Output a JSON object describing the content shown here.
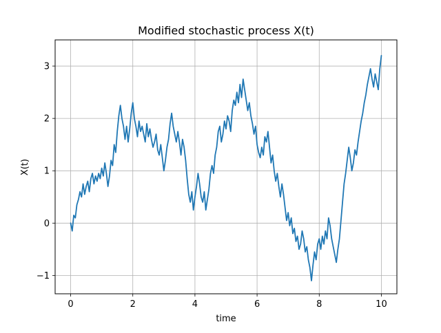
{
  "chart_data": {
    "type": "line",
    "title": "Modified stochastic process X(t)",
    "xlabel": "time",
    "ylabel": "X(t)",
    "xlim": [
      -0.5,
      10.5
    ],
    "ylim": [
      -1.35,
      3.5
    ],
    "grid": true,
    "legend": "none",
    "x_ticks": [
      0,
      2,
      4,
      6,
      8,
      10
    ],
    "y_ticks": [
      -1,
      0,
      1,
      2,
      3
    ],
    "x_tick_labels": [
      "0",
      "2",
      "4",
      "6",
      "8",
      "10"
    ],
    "y_tick_labels": [
      "−1",
      "0",
      "1",
      "2",
      "3"
    ],
    "series": [
      {
        "color": "#1f77b4",
        "x": [
          0,
          0.05,
          0.1,
          0.15,
          0.2,
          0.25,
          0.3,
          0.35,
          0.4,
          0.45,
          0.5,
          0.55,
          0.6,
          0.65,
          0.7,
          0.75,
          0.8,
          0.85,
          0.9,
          0.95,
          1.0,
          1.05,
          1.1,
          1.15,
          1.2,
          1.25,
          1.3,
          1.35,
          1.4,
          1.45,
          1.5,
          1.55,
          1.6,
          1.65,
          1.7,
          1.75,
          1.8,
          1.85,
          1.9,
          1.95,
          2.0,
          2.05,
          2.1,
          2.15,
          2.2,
          2.25,
          2.3,
          2.35,
          2.4,
          2.45,
          2.5,
          2.55,
          2.6,
          2.65,
          2.7,
          2.75,
          2.8,
          2.85,
          2.9,
          2.95,
          3.0,
          3.05,
          3.1,
          3.15,
          3.2,
          3.25,
          3.3,
          3.35,
          3.4,
          3.45,
          3.5,
          3.55,
          3.6,
          3.65,
          3.7,
          3.75,
          3.8,
          3.85,
          3.9,
          3.95,
          4.0,
          4.05,
          4.1,
          4.15,
          4.2,
          4.25,
          4.3,
          4.35,
          4.4,
          4.45,
          4.5,
          4.55,
          4.6,
          4.65,
          4.7,
          4.75,
          4.8,
          4.85,
          4.9,
          4.95,
          5.0,
          5.05,
          5.1,
          5.15,
          5.2,
          5.25,
          5.3,
          5.35,
          5.4,
          5.45,
          5.5,
          5.55,
          5.6,
          5.65,
          5.7,
          5.75,
          5.8,
          5.85,
          5.9,
          5.95,
          6.0,
          6.05,
          6.1,
          6.15,
          6.2,
          6.25,
          6.3,
          6.35,
          6.4,
          6.45,
          6.5,
          6.55,
          6.6,
          6.65,
          6.7,
          6.75,
          6.8,
          6.85,
          6.9,
          6.95,
          7.0,
          7.05,
          7.1,
          7.15,
          7.2,
          7.25,
          7.3,
          7.35,
          7.4,
          7.45,
          7.5,
          7.55,
          7.6,
          7.65,
          7.7,
          7.75,
          7.8,
          7.85,
          7.9,
          7.95,
          8.0,
          8.05,
          8.1,
          8.15,
          8.2,
          8.25,
          8.3,
          8.35,
          8.4,
          8.45,
          8.5,
          8.55,
          8.6,
          8.65,
          8.7,
          8.75,
          8.8,
          8.85,
          8.9,
          8.95,
          9.0,
          9.05,
          9.1,
          9.15,
          9.2,
          9.25,
          9.3,
          9.35,
          9.4,
          9.45,
          9.5,
          9.55,
          9.6,
          9.65,
          9.7,
          9.75,
          9.8,
          9.85,
          9.9,
          9.95,
          10.0
        ],
        "y": [
          0.0,
          -0.15,
          0.15,
          0.1,
          0.35,
          0.45,
          0.6,
          0.5,
          0.75,
          0.55,
          0.7,
          0.8,
          0.6,
          0.85,
          0.95,
          0.75,
          0.9,
          0.8,
          0.95,
          0.85,
          1.05,
          0.9,
          1.15,
          0.95,
          0.7,
          0.9,
          1.2,
          1.1,
          1.5,
          1.35,
          1.75,
          2.05,
          2.25,
          2.0,
          1.85,
          1.6,
          1.85,
          1.55,
          1.8,
          2.1,
          2.3,
          2.0,
          1.85,
          1.65,
          1.95,
          1.75,
          1.85,
          1.7,
          1.55,
          1.9,
          1.65,
          1.8,
          1.6,
          1.45,
          1.55,
          1.7,
          1.4,
          1.3,
          1.5,
          1.25,
          1.0,
          1.2,
          1.45,
          1.6,
          1.9,
          2.1,
          1.85,
          1.7,
          1.55,
          1.75,
          1.55,
          1.3,
          1.6,
          1.45,
          1.2,
          0.85,
          0.55,
          0.4,
          0.6,
          0.25,
          0.5,
          0.7,
          0.95,
          0.75,
          0.5,
          0.4,
          0.6,
          0.25,
          0.45,
          0.65,
          0.95,
          1.1,
          0.95,
          1.3,
          1.45,
          1.75,
          1.85,
          1.55,
          1.7,
          1.95,
          1.8,
          2.05,
          1.95,
          1.75,
          2.15,
          2.35,
          2.25,
          2.5,
          2.3,
          2.65,
          2.4,
          2.75,
          2.55,
          2.35,
          2.15,
          2.3,
          2.05,
          1.9,
          1.7,
          1.85,
          1.5,
          1.35,
          1.25,
          1.45,
          1.3,
          1.65,
          1.55,
          1.75,
          1.45,
          1.15,
          1.3,
          1.0,
          0.8,
          0.95,
          0.7,
          0.5,
          0.75,
          0.55,
          0.3,
          0.05,
          0.2,
          -0.05,
          0.1,
          -0.2,
          -0.1,
          -0.35,
          -0.25,
          -0.5,
          -0.4,
          -0.15,
          -0.3,
          -0.55,
          -0.45,
          -0.7,
          -0.85,
          -1.1,
          -0.8,
          -0.55,
          -0.7,
          -0.4,
          -0.3,
          -0.5,
          -0.25,
          -0.4,
          -0.15,
          -0.3,
          0.1,
          -0.05,
          -0.3,
          -0.45,
          -0.6,
          -0.75,
          -0.5,
          -0.3,
          0.05,
          0.4,
          0.75,
          0.95,
          1.2,
          1.45,
          1.25,
          1.0,
          1.15,
          1.4,
          1.3,
          1.55,
          1.75,
          1.95,
          2.1,
          2.3,
          2.45,
          2.65,
          2.8,
          2.95,
          2.75,
          2.6,
          2.85,
          2.7,
          2.55,
          2.95,
          3.2
        ]
      }
    ]
  }
}
